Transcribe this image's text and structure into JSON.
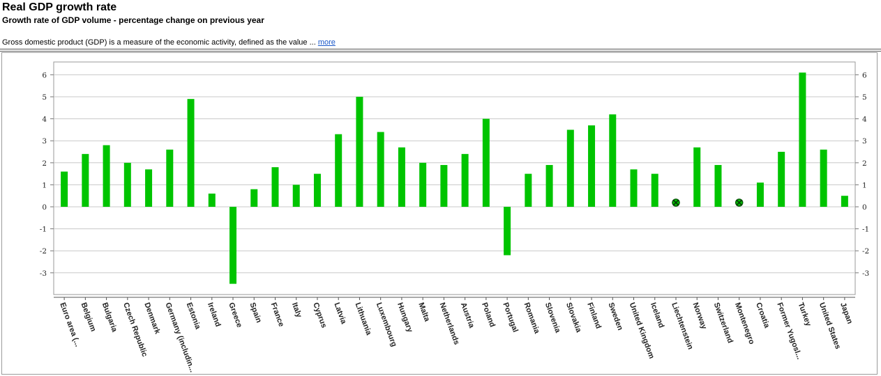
{
  "header": {
    "title": "Real GDP growth rate",
    "subtitle": "Growth rate of GDP volume - percentage change on previous year",
    "description": "Gross domestic product (GDP) is a measure of the economic activity, defined as the value ...",
    "more_link": "more"
  },
  "colors": {
    "bar": "#00c400",
    "grid": "#c8c8c8",
    "missing_marker": "#0a5a0a"
  },
  "chart_data": {
    "type": "bar",
    "title": "",
    "xlabel": "",
    "ylabel": "",
    "ylim": [
      -3.8,
      6.3
    ],
    "yticks": [
      6,
      5,
      4,
      3,
      2,
      1,
      0,
      -1,
      -2,
      -3
    ],
    "grid": true,
    "categories": [
      "Euro area (...",
      "Belgium",
      "Bulgaria",
      "Czech Republic",
      "Denmark",
      "Germany (includin...",
      "Estonia",
      "Ireland",
      "Greece",
      "Spain",
      "France",
      "Italy",
      "Cyprus",
      "Latvia",
      "Lithuania",
      "Luxembourg",
      "Hungary",
      "Malta",
      "Netherlands",
      "Austria",
      "Poland",
      "Portugal",
      "Romania",
      "Slovenia",
      "Slovakia",
      "Finland",
      "Sweden",
      "United Kingdom",
      "Iceland",
      "Liechtenstein",
      "Norway",
      "Switzerland",
      "Montenegro",
      "Croatia",
      "Former Yugosl...",
      "Turkey",
      "United States",
      "Japan"
    ],
    "values": [
      1.6,
      2.4,
      2.8,
      2.0,
      1.7,
      2.6,
      4.9,
      0.6,
      -3.5,
      0.8,
      1.8,
      1.0,
      1.5,
      3.3,
      5.0,
      3.4,
      2.7,
      2.0,
      1.9,
      2.4,
      4.0,
      -2.2,
      1.5,
      1.9,
      3.5,
      3.7,
      4.2,
      1.7,
      1.5,
      null,
      2.7,
      1.9,
      null,
      1.1,
      2.5,
      6.1,
      2.6,
      0.5
    ]
  }
}
